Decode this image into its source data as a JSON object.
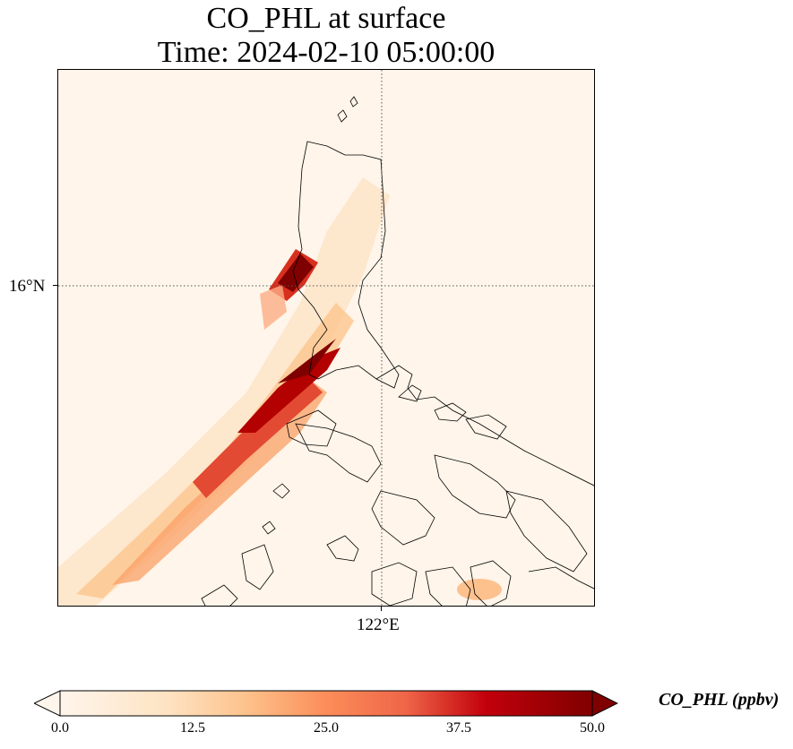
{
  "title": {
    "line1": "CO_PHL at surface",
    "line2": "Time: 2024-02-10 05:00:00"
  },
  "map": {
    "lat_ticks": [
      "16°N"
    ],
    "lon_ticks": [
      "122°E"
    ],
    "gridline_style": "dotted",
    "field": "CO_PHL",
    "plume_summary": "highest concentrations over western Luzon coast, extending southwest over sea"
  },
  "colorbar": {
    "label": "CO_PHL (ppbv)",
    "ticks": [
      "0.0",
      "12.5",
      "25.0",
      "37.5",
      "50.0"
    ],
    "min": 0,
    "max": 50,
    "extend": "both",
    "colormap": [
      "#fff5eb",
      "#fdd49e",
      "#fc8d59",
      "#d7301f",
      "#b30000",
      "#7f0000"
    ]
  }
}
